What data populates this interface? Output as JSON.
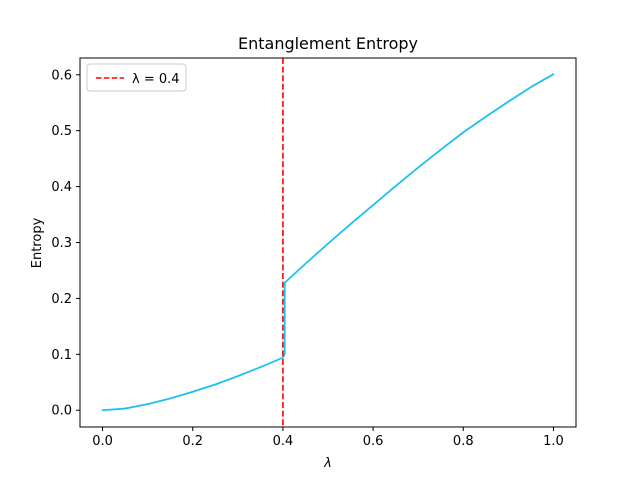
{
  "chart_data": {
    "type": "line",
    "title": "Entanglement Entropy",
    "xlabel": "λ",
    "ylabel": "Entropy",
    "xlim": [
      -0.05,
      1.05
    ],
    "ylim": [
      -0.03,
      0.63
    ],
    "xticks": [
      0.0,
      0.2,
      0.4,
      0.6,
      0.8,
      1.0
    ],
    "xtick_labels": [
      "0.0",
      "0.2",
      "0.4",
      "0.6",
      "0.8",
      "1.0"
    ],
    "yticks": [
      0.0,
      0.1,
      0.2,
      0.3,
      0.4,
      0.5,
      0.6
    ],
    "ytick_labels": [
      "0.0",
      "0.1",
      "0.2",
      "0.3",
      "0.4",
      "0.5",
      "0.6"
    ],
    "grid": false,
    "legend_position": "top-left",
    "series": [
      {
        "color": "#1ec0f0",
        "x": [
          0.0,
          0.05,
          0.1,
          0.15,
          0.2,
          0.25,
          0.3,
          0.35,
          0.4,
          0.404,
          0.404,
          0.45,
          0.5,
          0.55,
          0.6,
          0.65,
          0.7,
          0.75,
          0.8,
          0.85,
          0.9,
          0.95,
          1.0
        ],
        "y": [
          0.0,
          0.003,
          0.011,
          0.021,
          0.033,
          0.046,
          0.061,
          0.077,
          0.094,
          0.101,
          0.228,
          0.262,
          0.298,
          0.333,
          0.367,
          0.401,
          0.434,
          0.466,
          0.497,
          0.525,
          0.552,
          0.578,
          0.601
        ]
      }
    ],
    "vlines": [
      {
        "name": "λ = 0.4",
        "x": 0.4,
        "color": "#ff0000",
        "style": "dashed"
      }
    ]
  }
}
